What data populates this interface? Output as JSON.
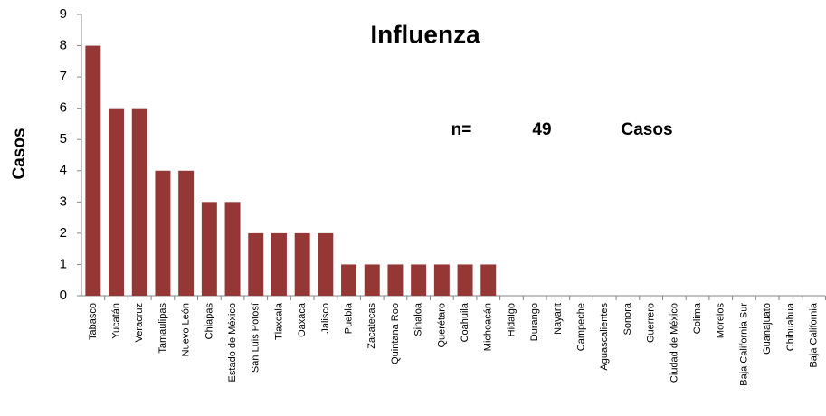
{
  "chart_data": {
    "type": "bar",
    "title": "Influenza",
    "y_label": "Casos",
    "annotation": {
      "prefix": "n=",
      "n": 49,
      "unit": "Casos"
    },
    "categories": [
      "Tabasco",
      "Yucatán",
      "Veracruz",
      "Tamaulipas",
      "Nuevo León",
      "Chiapas",
      "Estado de México",
      "San Luis Potosí",
      "Tlaxcala",
      "Oaxaca",
      "Jalisco",
      "Puebla",
      "Zacatecas",
      "Quintana Roo",
      "Sinaloa",
      "Querétaro",
      "Coahuila",
      "Michoacán",
      "Hidalgo",
      "Durango",
      "Nayarit",
      "Campeche",
      "Aguascalientes",
      "Sonora",
      "Guerrero",
      "Ciudad de México",
      "Colima",
      "Morelos",
      "Baja California Sur",
      "Guanajuato",
      "Chihuahua",
      "Baja California"
    ],
    "values": [
      8,
      6,
      6,
      4,
      4,
      3,
      3,
      2,
      2,
      2,
      2,
      1,
      1,
      1,
      1,
      1,
      1,
      1,
      0,
      0,
      0,
      0,
      0,
      0,
      0,
      0,
      0,
      0,
      0,
      0,
      0,
      0
    ],
    "color": "#953735",
    "ylim": [
      0,
      9
    ],
    "yticks": [
      0,
      1,
      2,
      3,
      4,
      5,
      6,
      7,
      8,
      9
    ],
    "grid": false
  }
}
